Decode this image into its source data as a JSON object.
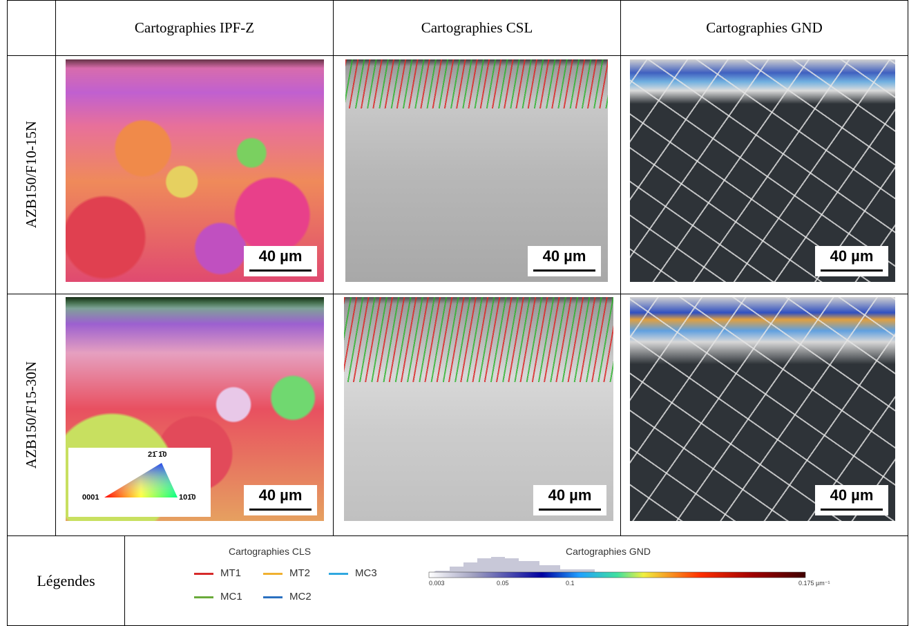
{
  "table": {
    "header": [
      "Cartographies IPF-Z",
      "Cartographies CSL",
      "Cartographies GND"
    ],
    "rows": [
      {
        "label": "AZB150/F10-15N",
        "scale_bars": [
          "40 µm",
          "40 µm",
          "40 µm"
        ]
      },
      {
        "label": "AZB150/F15-30N",
        "scale_bars": [
          "40 µm",
          "40 µm",
          "40 µm"
        ]
      }
    ],
    "ipf_key": {
      "top": "21̄ 1̄0",
      "left": "0001",
      "right": "101̄0"
    }
  },
  "legend": {
    "label": "Légendes",
    "csl": {
      "title": "Cartographies CLS",
      "items": [
        {
          "name": "MT1",
          "color": "#d62a2a"
        },
        {
          "name": "MT2",
          "color": "#f0b030"
        },
        {
          "name": "MC3",
          "color": "#30a8e0"
        },
        {
          "name": "MC1",
          "color": "#6aaa3a"
        },
        {
          "name": "MC2",
          "color": "#2a70c0"
        }
      ]
    },
    "gnd": {
      "title": "Cartographies GND",
      "ticks": [
        "0.003",
        "0.05",
        "0.1",
        "0.175 µm⁻¹"
      ]
    }
  }
}
